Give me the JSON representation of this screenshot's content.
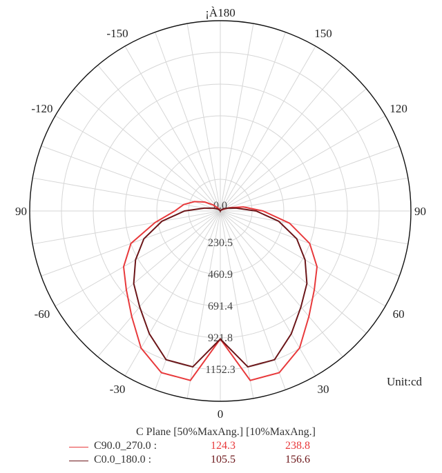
{
  "chart_data": {
    "type": "polar",
    "unit_label": "Unit:cd",
    "angle_labels": [
      {
        "angle": 0,
        "text": "0"
      },
      {
        "angle": 30,
        "text": "30"
      },
      {
        "angle": -30,
        "text": "-30"
      },
      {
        "angle": 60,
        "text": "60"
      },
      {
        "angle": -60,
        "text": "-60"
      },
      {
        "angle": 90,
        "text": "90"
      },
      {
        "angle": -90,
        "text": "90"
      },
      {
        "angle": 120,
        "text": "120"
      },
      {
        "angle": -120,
        "text": "-120"
      },
      {
        "angle": 150,
        "text": "150"
      },
      {
        "angle": -150,
        "text": "-150"
      },
      {
        "angle": 180,
        "text": "¡À180"
      }
    ],
    "radial_labels": [
      "0.0",
      "230.5",
      "460.9",
      "691.4",
      "921.8",
      "1152.3"
    ],
    "r_max": 1382.8,
    "legend_header": "C Plane  [50%MaxAng.]  [10%MaxAng.]",
    "series": [
      {
        "name": "C90.0_270.0 :",
        "color": "#e8393b",
        "beam50": "124.3",
        "beam10": "238.8",
        "points": [
          [
            0,
            930
          ],
          [
            10,
            1250
          ],
          [
            20,
            1250
          ],
          [
            30,
            1150
          ],
          [
            40,
            1000
          ],
          [
            50,
            890
          ],
          [
            60,
            810
          ],
          [
            70,
            690
          ],
          [
            80,
            510
          ],
          [
            90,
            310
          ],
          [
            100,
            170
          ],
          [
            110,
            70
          ],
          [
            120,
            25
          ],
          [
            130,
            12
          ],
          [
            140,
            8
          ],
          [
            150,
            6
          ],
          [
            160,
            4
          ],
          [
            170,
            2
          ],
          [
            180,
            0
          ],
          [
            -170,
            5
          ],
          [
            -160,
            8
          ],
          [
            -150,
            15
          ],
          [
            -140,
            30
          ],
          [
            -130,
            70
          ],
          [
            -120,
            130
          ],
          [
            -110,
            200
          ],
          [
            -100,
            270
          ],
          [
            -90,
            330
          ],
          [
            -80,
            480
          ],
          [
            -70,
            690
          ],
          [
            -60,
            810
          ],
          [
            -50,
            890
          ],
          [
            -40,
            1000
          ],
          [
            -30,
            1150
          ],
          [
            -20,
            1250
          ],
          [
            -10,
            1250
          ]
        ]
      },
      {
        "name": "C0.0_180.0  :",
        "color": "#6b1518",
        "beam50": "105.5",
        "beam10": "156.6",
        "points": [
          [
            0,
            930
          ],
          [
            10,
            1150
          ],
          [
            20,
            1150
          ],
          [
            30,
            1030
          ],
          [
            40,
            910
          ],
          [
            50,
            820
          ],
          [
            60,
            710
          ],
          [
            70,
            590
          ],
          [
            80,
            430
          ],
          [
            90,
            260
          ],
          [
            100,
            120
          ],
          [
            110,
            60
          ],
          [
            120,
            35
          ],
          [
            130,
            20
          ],
          [
            140,
            8
          ],
          [
            150,
            4
          ],
          [
            160,
            2
          ],
          [
            170,
            0
          ],
          [
            180,
            0
          ],
          [
            -170,
            0
          ],
          [
            -160,
            2
          ],
          [
            -150,
            4
          ],
          [
            -140,
            8
          ],
          [
            -130,
            20
          ],
          [
            -120,
            35
          ],
          [
            -110,
            60
          ],
          [
            -100,
            120
          ],
          [
            -90,
            260
          ],
          [
            -80,
            430
          ],
          [
            -70,
            590
          ],
          [
            -60,
            710
          ],
          [
            -50,
            820
          ],
          [
            -40,
            910
          ],
          [
            -30,
            1030
          ],
          [
            -20,
            1150
          ],
          [
            -10,
            1150
          ]
        ]
      }
    ]
  }
}
